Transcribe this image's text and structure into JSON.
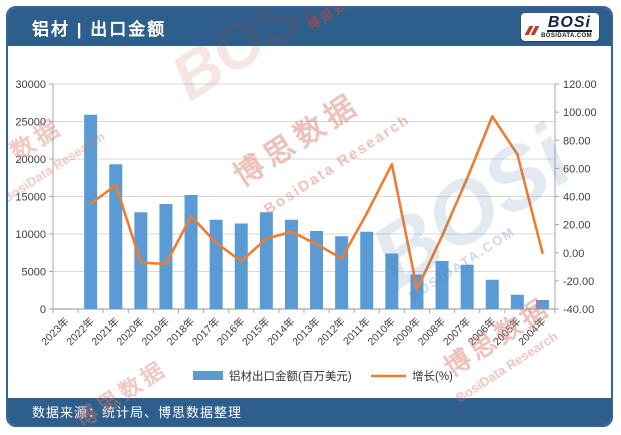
{
  "header": {
    "title": "铝材 | 出口金额",
    "logo_text": "BOSi",
    "logo_subtext": "BOSIDATA.COM"
  },
  "footer": {
    "source": "数据来源：统计局、博思数据整理"
  },
  "watermarks": {
    "wordmark": "BOSi",
    "domain": "BOSIDATA.COM",
    "cn": "博思数据",
    "en": "BosiData Research",
    "short": "数据"
  },
  "chart_data": {
    "type": "bar+line combo",
    "title": "铝材 | 出口金额",
    "categories": [
      "2023年",
      "2022年",
      "2021年",
      "2020年",
      "2019年",
      "2018年",
      "2017年",
      "2016年",
      "2015年",
      "2014年",
      "2013年",
      "2012年",
      "2011年",
      "2010年",
      "2009年",
      "2008年",
      "2007年",
      "2006年",
      "2005年",
      "2004年"
    ],
    "series": [
      {
        "name": "铝材出口金额(百万美元)",
        "type": "bar",
        "axis": "left",
        "color": "#5b9bd5",
        "values": [
          null,
          25900,
          19300,
          12900,
          14000,
          15200,
          11900,
          11400,
          12900,
          11900,
          10400,
          9700,
          10300,
          7400,
          4600,
          6400,
          5900,
          3900,
          1900,
          1200
        ]
      },
      {
        "name": "增长(%)",
        "type": "line",
        "axis": "right",
        "color": "#ed7d31",
        "values": [
          null,
          35,
          48,
          -7,
          -8,
          26,
          7,
          -6,
          10,
          15,
          6,
          -4,
          28,
          63,
          -26,
          12,
          53,
          97,
          70,
          0
        ]
      }
    ],
    "left_axis": {
      "min": 0,
      "max": 30000,
      "step": 5000,
      "ticks": [
        "0",
        "5000",
        "10000",
        "15000",
        "20000",
        "25000",
        "30000"
      ]
    },
    "right_axis": {
      "min": -40,
      "max": 120,
      "step": 20,
      "ticks": [
        "-40.00",
        "-20.00",
        "0.00",
        "20.00",
        "40.00",
        "60.00",
        "80.00",
        "100.00",
        "120.00"
      ]
    },
    "grid": "horizontal",
    "legend_position": "bottom"
  },
  "colors": {
    "header_bg": "#2e5f8c",
    "bar": "#5b9bd5",
    "line": "#ed7d31",
    "grid": "#d9d9d9",
    "axis": "#a6a6a6",
    "tick_text": "#404040"
  }
}
